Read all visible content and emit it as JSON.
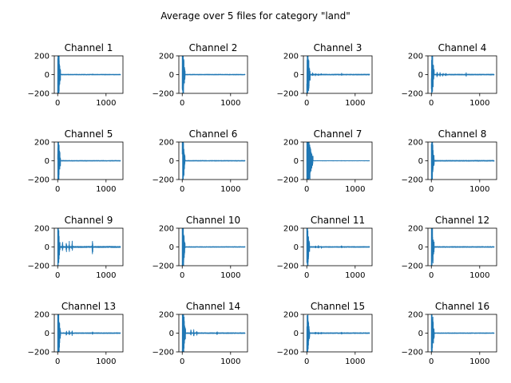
{
  "figure": {
    "suptitle": "Average over 5 files for category \"land\""
  },
  "chart_data": {
    "type": "line",
    "title": "Average over 5 files for category \"land\"",
    "color": "#1f77b4",
    "xlim": [
      -70,
      1350
    ],
    "ylim": [
      -200,
      200
    ],
    "xticks": [
      0,
      1000
    ],
    "xtick_labels": [
      "0",
      "1000"
    ],
    "yticks": [
      -200,
      0,
      200
    ],
    "ytick_labels": [
      "−200",
      "0",
      "200"
    ],
    "grid": false,
    "n_samples": 1300,
    "panels": [
      {
        "title": "Channel 1",
        "burst_end": 60,
        "burst_amp": 400,
        "noise": 3,
        "events": [
          [
            720,
            8
          ]
        ]
      },
      {
        "title": "Channel 2",
        "burst_end": 60,
        "burst_amp": 400,
        "noise": 3,
        "events": []
      },
      {
        "title": "Channel 3",
        "burst_end": 70,
        "burst_amp": 400,
        "noise": 4,
        "events": [
          [
            120,
            18
          ],
          [
            180,
            15
          ],
          [
            240,
            12
          ],
          [
            300,
            10
          ],
          [
            720,
            20
          ]
        ]
      },
      {
        "title": "Channel 4",
        "burst_end": 60,
        "burst_amp": 400,
        "noise": 4,
        "events": [
          [
            120,
            30
          ],
          [
            180,
            25
          ],
          [
            240,
            20
          ],
          [
            300,
            15
          ],
          [
            720,
            22
          ]
        ]
      },
      {
        "title": "Channel 5",
        "burst_end": 60,
        "burst_amp": 400,
        "noise": 3,
        "events": []
      },
      {
        "title": "Channel 6",
        "burst_end": 60,
        "burst_amp": 400,
        "noise": 3,
        "events": []
      },
      {
        "title": "Channel 7",
        "burst_end": 130,
        "burst_amp": 400,
        "noise": 0.5,
        "events": []
      },
      {
        "title": "Channel 8",
        "burst_end": 60,
        "burst_amp": 400,
        "noise": 4,
        "events": []
      },
      {
        "title": "Channel 9",
        "burst_end": 50,
        "burst_amp": 400,
        "noise": 6,
        "events": [
          [
            100,
            55
          ],
          [
            180,
            60
          ],
          [
            240,
            60
          ],
          [
            300,
            80
          ],
          [
            720,
            110
          ]
        ]
      },
      {
        "title": "Channel 10",
        "burst_end": 60,
        "burst_amp": 400,
        "noise": 3,
        "events": []
      },
      {
        "title": "Channel 11",
        "burst_end": 60,
        "burst_amp": 400,
        "noise": 4,
        "events": [
          [
            180,
            15
          ],
          [
            240,
            15
          ],
          [
            300,
            12
          ],
          [
            720,
            15
          ]
        ]
      },
      {
        "title": "Channel 12",
        "burst_end": 60,
        "burst_amp": 400,
        "noise": 4,
        "events": []
      },
      {
        "title": "Channel 13",
        "burst_end": 60,
        "burst_amp": 400,
        "noise": 4,
        "events": [
          [
            180,
            30
          ],
          [
            240,
            35
          ],
          [
            300,
            30
          ],
          [
            720,
            25
          ]
        ]
      },
      {
        "title": "Channel 14",
        "burst_end": 70,
        "burst_amp": 400,
        "noise": 4,
        "events": [
          [
            180,
            40
          ],
          [
            240,
            45
          ],
          [
            300,
            30
          ],
          [
            720,
            25
          ]
        ]
      },
      {
        "title": "Channel 15",
        "burst_end": 60,
        "burst_amp": 400,
        "noise": 4,
        "events": [
          [
            180,
            12
          ],
          [
            240,
            12
          ],
          [
            300,
            10
          ],
          [
            720,
            12
          ]
        ]
      },
      {
        "title": "Channel 16",
        "burst_end": 60,
        "burst_amp": 400,
        "noise": 3,
        "events": []
      }
    ]
  }
}
